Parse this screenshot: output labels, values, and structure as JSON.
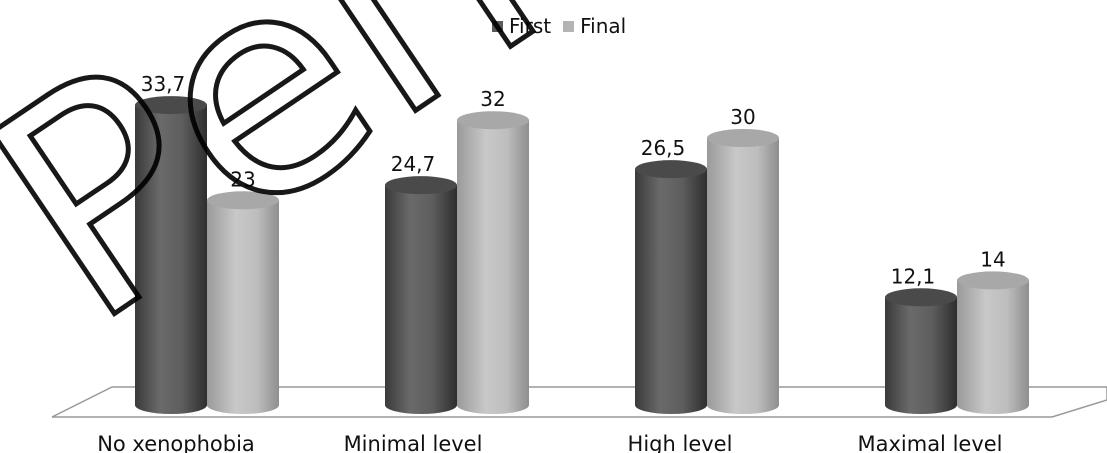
{
  "chart_data": {
    "type": "bar",
    "categories": [
      "No xenophobia",
      "Minimal level",
      "High level",
      "Maximal level"
    ],
    "series": [
      {
        "name": "First",
        "values": [
          33.7,
          24.7,
          26.5,
          12.1
        ],
        "labels": [
          "33,7",
          "24,7",
          "26,5",
          "12,1"
        ],
        "color": "#5a5a5a"
      },
      {
        "name": "Final",
        "values": [
          23,
          32,
          30,
          14
        ],
        "labels": [
          "23",
          "32",
          "30",
          "14"
        ],
        "color": "#b4b4b4"
      }
    ],
    "title": "",
    "xlabel": "",
    "ylabel": "",
    "ylim": [
      0,
      35
    ],
    "grid": false,
    "legend_position": "top-center"
  },
  "watermark": {
    "text": "Репо",
    "color": "#000000"
  }
}
